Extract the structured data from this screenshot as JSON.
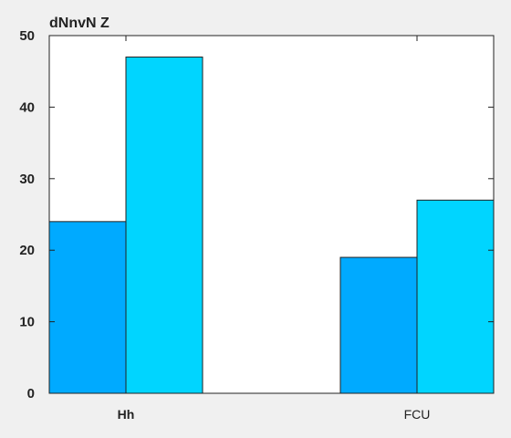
{
  "chart_data": {
    "type": "bar",
    "title": "dNnvN Z",
    "xlabel": "",
    "ylabel": "",
    "categories": [
      "Hh",
      "FCU"
    ],
    "category_label_weights": [
      "bold",
      "normal"
    ],
    "series": [
      {
        "values": [
          24,
          19
        ],
        "color": "#00aaff"
      },
      {
        "values": [
          47,
          27
        ],
        "color": "#00d5ff"
      }
    ],
    "ylim": [
      0,
      50
    ],
    "yticks": [
      0,
      10,
      20,
      30,
      40,
      50
    ],
    "grid": false,
    "legend": "none"
  },
  "colors": {
    "background": "#f0f0f0",
    "plot_background": "#ffffff",
    "bar_edge": "#222222"
  }
}
